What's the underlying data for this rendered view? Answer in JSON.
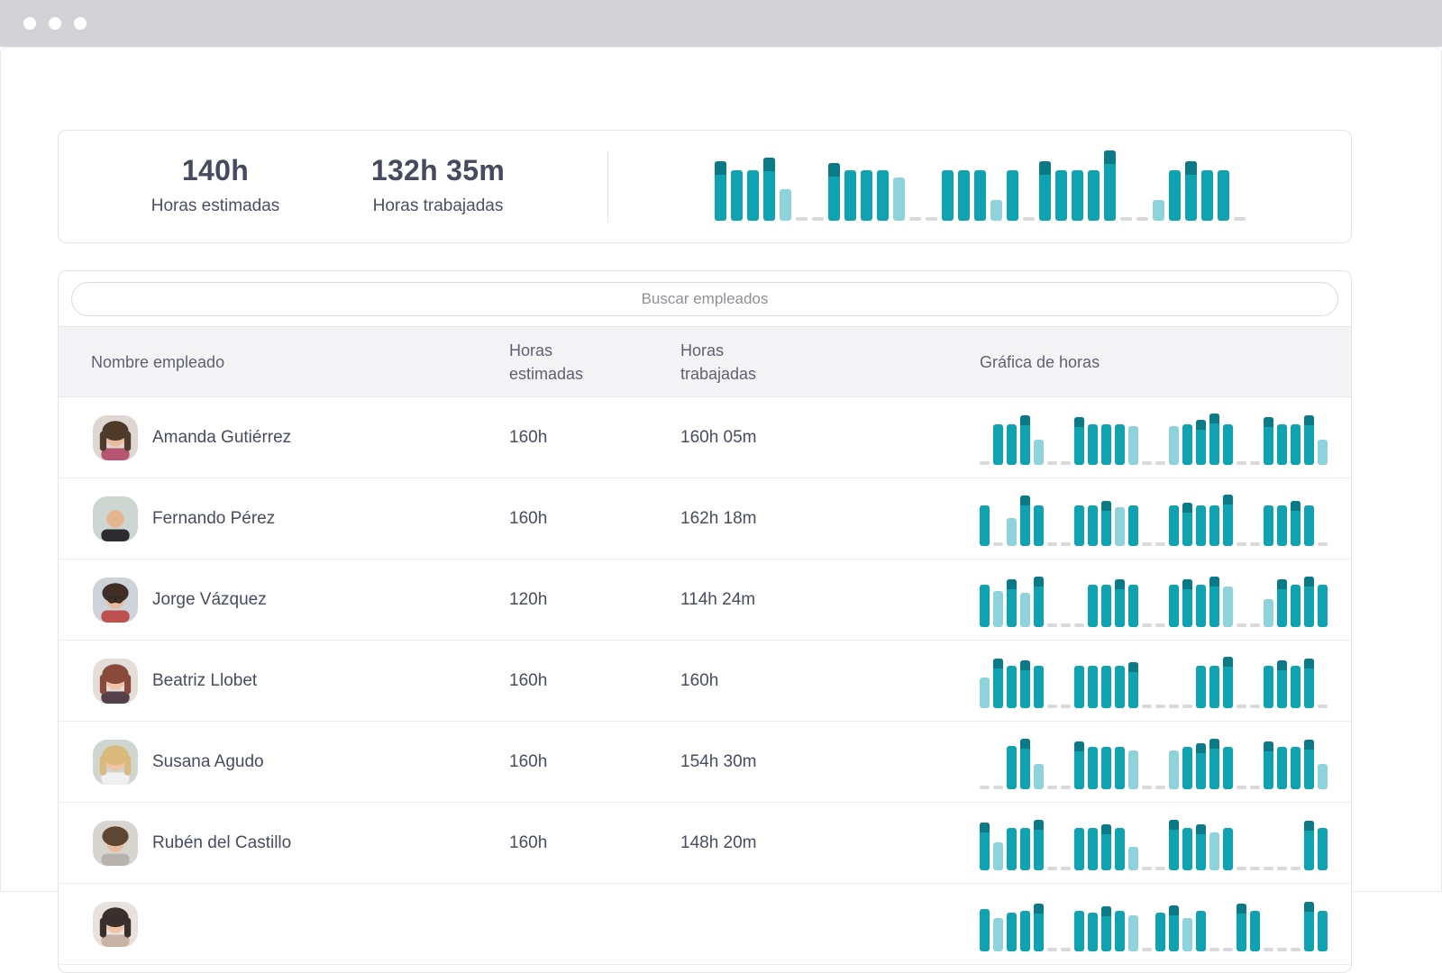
{
  "colors": {
    "bar_teal": "#0FA2B0",
    "bar_light": "#8ED3DB",
    "bar_cap": "#0B7A87",
    "dash_gray": "#D9D9DB",
    "topbar_gray": "#D2D2D7"
  },
  "window": {
    "traffic_dots": [
      "dot",
      "dot",
      "dot"
    ]
  },
  "summary": {
    "estimated_value": "140h",
    "estimated_label": "Horas estimadas",
    "worked_value": "132h 35m",
    "worked_label": "Horas trabajadas",
    "chart": [
      [
        "c",
        85
      ],
      [
        "n",
        72
      ],
      [
        "n",
        72
      ],
      [
        "c",
        90
      ],
      [
        "l",
        45
      ],
      [
        "d",
        0
      ],
      [
        "d",
        0
      ],
      [
        "c",
        82
      ],
      [
        "n",
        72
      ],
      [
        "n",
        72
      ],
      [
        "n",
        72
      ],
      [
        "l",
        62
      ],
      [
        "d",
        0
      ],
      [
        "d",
        0
      ],
      [
        "n",
        72
      ],
      [
        "n",
        72
      ],
      [
        "n",
        72
      ],
      [
        "l",
        30
      ],
      [
        "n",
        72
      ],
      [
        "d",
        0
      ],
      [
        "c",
        85
      ],
      [
        "n",
        72
      ],
      [
        "n",
        72
      ],
      [
        "n",
        72
      ],
      [
        "c",
        100
      ],
      [
        "d",
        0
      ],
      [
        "d",
        0
      ],
      [
        "l",
        30
      ],
      [
        "n",
        72
      ],
      [
        "c",
        85
      ],
      [
        "n",
        72
      ],
      [
        "n",
        72
      ],
      [
        "d",
        0
      ]
    ]
  },
  "search": {
    "placeholder": "Buscar empleados"
  },
  "table": {
    "headers": {
      "name": "Nombre empleado",
      "estimated": "Horas estimadas",
      "worked": "Horas trabajadas",
      "chart": "Gráfica de horas"
    },
    "rows": [
      {
        "name": "Amanda Gutiérrez",
        "estimated": "160h",
        "worked": "160h 05m",
        "avatar": {
          "bg": "#ddd6d2",
          "hair": "#4f3a2a",
          "skin": "#e9bb9d",
          "shirt": "#b85570",
          "long": true,
          "bald": false,
          "glasses": false
        },
        "chart": [
          [
            "d",
            0
          ],
          [
            "n",
            72
          ],
          [
            "n",
            72
          ],
          [
            "c",
            88
          ],
          [
            "l",
            45
          ],
          [
            "d",
            0
          ],
          [
            "d",
            0
          ],
          [
            "c",
            85
          ],
          [
            "n",
            72
          ],
          [
            "n",
            72
          ],
          [
            "n",
            72
          ],
          [
            "l",
            70
          ],
          [
            "d",
            0
          ],
          [
            "d",
            0
          ],
          [
            "l",
            70
          ],
          [
            "n",
            72
          ],
          [
            "c",
            80
          ],
          [
            "c",
            92
          ],
          [
            "n",
            72
          ],
          [
            "d",
            0
          ],
          [
            "d",
            0
          ],
          [
            "c",
            85
          ],
          [
            "n",
            72
          ],
          [
            "n",
            72
          ],
          [
            "c",
            88
          ],
          [
            "l",
            45
          ]
        ]
      },
      {
        "name": "Fernando Pérez",
        "estimated": "160h",
        "worked": "162h 18m",
        "avatar": {
          "bg": "#ccd6d0",
          "hair": "#b9a895",
          "skin": "#e5b494",
          "shirt": "#2c2c30",
          "long": false,
          "bald": true,
          "glasses": false
        },
        "chart": [
          [
            "n",
            72
          ],
          [
            "d",
            0
          ],
          [
            "l",
            50
          ],
          [
            "c",
            90
          ],
          [
            "n",
            72
          ],
          [
            "d",
            0
          ],
          [
            "d",
            0
          ],
          [
            "n",
            72
          ],
          [
            "n",
            72
          ],
          [
            "c",
            80
          ],
          [
            "l",
            70
          ],
          [
            "n",
            72
          ],
          [
            "d",
            0
          ],
          [
            "d",
            0
          ],
          [
            "n",
            72
          ],
          [
            "c",
            78
          ],
          [
            "n",
            72
          ],
          [
            "n",
            72
          ],
          [
            "c",
            92
          ],
          [
            "d",
            0
          ],
          [
            "d",
            0
          ],
          [
            "n",
            72
          ],
          [
            "n",
            72
          ],
          [
            "c",
            80
          ],
          [
            "n",
            72
          ],
          [
            "d",
            0
          ]
        ]
      },
      {
        "name": "Jorge Vázquez",
        "estimated": "120h",
        "worked": "114h 24m",
        "avatar": {
          "bg": "#cdd3d8",
          "hair": "#3f2f26",
          "skin": "#e9bb9d",
          "shirt": "#c0504d",
          "long": false,
          "bald": false,
          "glasses": true
        },
        "chart": [
          [
            "n",
            75
          ],
          [
            "l",
            65
          ],
          [
            "c",
            85
          ],
          [
            "l",
            62
          ],
          [
            "c",
            90
          ],
          [
            "d",
            0
          ],
          [
            "d",
            0
          ],
          [
            "d",
            0
          ],
          [
            "n",
            75
          ],
          [
            "n",
            75
          ],
          [
            "c",
            85
          ],
          [
            "n",
            75
          ],
          [
            "d",
            0
          ],
          [
            "d",
            0
          ],
          [
            "n",
            75
          ],
          [
            "c",
            85
          ],
          [
            "n",
            75
          ],
          [
            "c",
            90
          ],
          [
            "l",
            72
          ],
          [
            "d",
            0
          ],
          [
            "d",
            0
          ],
          [
            "l",
            50
          ],
          [
            "c",
            85
          ],
          [
            "n",
            75
          ],
          [
            "c",
            90
          ],
          [
            "n",
            75
          ]
        ]
      },
      {
        "name": "Beatriz Llobet",
        "estimated": "160h",
        "worked": "160h",
        "avatar": {
          "bg": "#e3ded9",
          "hair": "#8a4a3a",
          "skin": "#eec3a6",
          "shirt": "#53404a",
          "long": true,
          "bald": false,
          "glasses": false
        },
        "chart": [
          [
            "l",
            55
          ],
          [
            "c",
            88
          ],
          [
            "n",
            75
          ],
          [
            "c",
            85
          ],
          [
            "n",
            75
          ],
          [
            "d",
            0
          ],
          [
            "d",
            0
          ],
          [
            "n",
            75
          ],
          [
            "n",
            75
          ],
          [
            "n",
            75
          ],
          [
            "n",
            75
          ],
          [
            "c",
            82
          ],
          [
            "d",
            0
          ],
          [
            "d",
            0
          ],
          [
            "d",
            0
          ],
          [
            "d",
            0
          ],
          [
            "n",
            75
          ],
          [
            "n",
            75
          ],
          [
            "c",
            92
          ],
          [
            "d",
            0
          ],
          [
            "d",
            0
          ],
          [
            "n",
            75
          ],
          [
            "c",
            85
          ],
          [
            "n",
            75
          ],
          [
            "c",
            88
          ],
          [
            "d",
            0
          ]
        ]
      },
      {
        "name": "Susana Agudo",
        "estimated": "160h",
        "worked": "154h 30m",
        "avatar": {
          "bg": "#cfd6cf",
          "hair": "#d9b97c",
          "skin": "#eec3a6",
          "shirt": "#eef0f2",
          "long": true,
          "bald": false,
          "glasses": false
        },
        "chart": [
          [
            "d",
            0
          ],
          [
            "d",
            0
          ],
          [
            "n",
            78
          ],
          [
            "c",
            90
          ],
          [
            "l",
            45
          ],
          [
            "d",
            0
          ],
          [
            "d",
            0
          ],
          [
            "c",
            85
          ],
          [
            "n",
            75
          ],
          [
            "n",
            75
          ],
          [
            "n",
            75
          ],
          [
            "l",
            70
          ],
          [
            "d",
            0
          ],
          [
            "d",
            0
          ],
          [
            "l",
            70
          ],
          [
            "n",
            75
          ],
          [
            "c",
            82
          ],
          [
            "c",
            90
          ],
          [
            "n",
            75
          ],
          [
            "d",
            0
          ],
          [
            "d",
            0
          ],
          [
            "c",
            85
          ],
          [
            "n",
            75
          ],
          [
            "n",
            75
          ],
          [
            "c",
            88
          ],
          [
            "l",
            45
          ]
        ]
      },
      {
        "name": "Rubén del Castillo",
        "estimated": "160h",
        "worked": "148h 20m",
        "avatar": {
          "bg": "#d8d4cf",
          "hair": "#5d4632",
          "skin": "#e9bb9d",
          "shirt": "#b7b3ac",
          "long": false,
          "bald": false,
          "glasses": false
        },
        "chart": [
          [
            "c",
            85
          ],
          [
            "l",
            50
          ],
          [
            "n",
            75
          ],
          [
            "n",
            75
          ],
          [
            "c",
            90
          ],
          [
            "d",
            0
          ],
          [
            "d",
            0
          ],
          [
            "n",
            75
          ],
          [
            "n",
            75
          ],
          [
            "c",
            82
          ],
          [
            "n",
            75
          ],
          [
            "l",
            42
          ],
          [
            "d",
            0
          ],
          [
            "d",
            0
          ],
          [
            "c",
            90
          ],
          [
            "n",
            75
          ],
          [
            "c",
            82
          ],
          [
            "l",
            68
          ],
          [
            "n",
            75
          ],
          [
            "d",
            0
          ],
          [
            "d",
            0
          ],
          [
            "d",
            0
          ],
          [
            "d",
            0
          ],
          [
            "d",
            0
          ],
          [
            "c",
            88
          ],
          [
            "n",
            75
          ]
        ]
      },
      {
        "name": "",
        "estimated": "",
        "worked": "",
        "avatar": {
          "bg": "#e8e2de",
          "hair": "#3a2f2c",
          "skin": "#eec3a6",
          "shirt": "#c9b3a5",
          "long": true,
          "bald": false,
          "glasses": false
        },
        "chart": [
          [
            "n",
            75
          ],
          [
            "l",
            60
          ],
          [
            "n",
            70
          ],
          [
            "n",
            72
          ],
          [
            "c",
            85
          ],
          [
            "d",
            0
          ],
          [
            "d",
            0
          ],
          [
            "n",
            72
          ],
          [
            "n",
            70
          ],
          [
            "c",
            80
          ],
          [
            "n",
            72
          ],
          [
            "l",
            65
          ],
          [
            "d",
            0
          ],
          [
            "n",
            70
          ],
          [
            "c",
            82
          ],
          [
            "l",
            60
          ],
          [
            "n",
            72
          ],
          [
            "d",
            0
          ],
          [
            "d",
            0
          ],
          [
            "c",
            85
          ],
          [
            "n",
            72
          ],
          [
            "d",
            0
          ],
          [
            "d",
            0
          ],
          [
            "d",
            0
          ],
          [
            "c",
            88
          ],
          [
            "n",
            72
          ]
        ]
      }
    ]
  }
}
